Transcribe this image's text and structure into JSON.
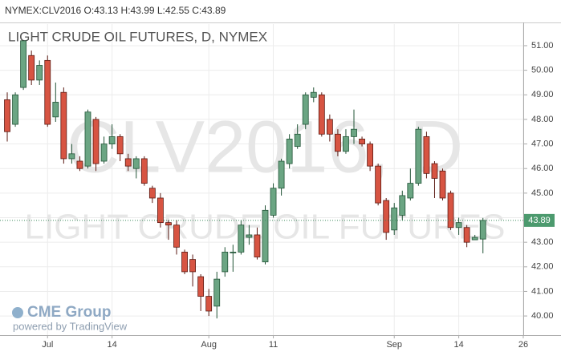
{
  "chart_data": {
    "type": "candlestick",
    "header": "NYMEX:CLV2016 O:43.13 H:43.99 L:42.55 C:43.89",
    "title": "LIGHT CRUDE OIL FUTURES, D, NYMEX",
    "watermark_symbol": "CLV2016, D",
    "watermark_name": "LIGHT CRUDE OIL FUTURES",
    "logo": "CME Group",
    "credit": "powered by TradingView",
    "categories": [
      null,
      null,
      null,
      null,
      null,
      "Jul",
      null,
      null,
      null,
      null,
      null,
      null,
      null,
      "14",
      null,
      null,
      null,
      null,
      null,
      null,
      null,
      null,
      null,
      null,
      null,
      "Aug",
      null,
      null,
      null,
      null,
      null,
      null,
      null,
      "11",
      null,
      null,
      null,
      null,
      null,
      null,
      null,
      null,
      null,
      null,
      null,
      null,
      null,
      null,
      "Sep",
      null,
      null,
      null,
      null,
      null,
      null,
      null,
      "14",
      null,
      null,
      null,
      null,
      null,
      null,
      null,
      "26"
    ],
    "series": {
      "up_color": "#6ba583",
      "down_color": "#d75442",
      "open": [
        48.8,
        47.8,
        49.3,
        50.6,
        49.6,
        50.4,
        48.1,
        49.1,
        46.4,
        46.3,
        46.1,
        48.0,
        46.3,
        47.0,
        47.3,
        46.4,
        46.0,
        46.4,
        45.2,
        44.8,
        43.8,
        43.7,
        42.6,
        42.3,
        41.6,
        40.8,
        40.4,
        41.8,
        42.6,
        42.6,
        43.2,
        43.3,
        42.2,
        44.1,
        45.2,
        46.2,
        46.9,
        47.8,
        48.9,
        49.0,
        48.0,
        47.4,
        46.7,
        47.3,
        47.2,
        47.0,
        46.1,
        44.7,
        43.5,
        44.1,
        44.8,
        45.4,
        47.3,
        46.2,
        45.9,
        45.0,
        43.6,
        43.6,
        43.1,
        43.13,
        null,
        null,
        null,
        null,
        null
      ],
      "high": [
        49.1,
        49.1,
        51.2,
        50.8,
        50.4,
        50.6,
        49.5,
        49.3,
        47.0,
        46.5,
        48.4,
        48.1,
        47.3,
        47.8,
        47.4,
        46.6,
        46.5,
        46.5,
        45.3,
        45.0,
        43.9,
        43.9,
        42.7,
        42.5,
        41.7,
        41.1,
        41.8,
        42.8,
        42.9,
        43.9,
        43.7,
        43.6,
        44.5,
        45.4,
        46.4,
        47.4,
        47.8,
        49.1,
        49.3,
        49.1,
        48.2,
        47.6,
        47.6,
        48.4,
        47.3,
        47.1,
        46.2,
        44.8,
        44.6,
        45.1,
        46.0,
        47.7,
        47.5,
        46.3,
        46.0,
        45.1,
        44.0,
        43.7,
        43.3,
        43.99,
        null,
        null,
        null,
        null,
        null
      ],
      "low": [
        47.1,
        47.7,
        49.2,
        49.4,
        49.4,
        47.7,
        47.9,
        46.2,
        46.2,
        45.9,
        46.0,
        45.9,
        46.2,
        46.8,
        46.3,
        45.9,
        45.6,
        45.3,
        44.6,
        43.6,
        43.1,
        42.5,
        41.7,
        41.2,
        40.2,
        40.0,
        39.9,
        41.6,
        41.8,
        42.5,
        42.9,
        42.3,
        42.1,
        44.0,
        44.9,
        46.0,
        46.8,
        47.6,
        48.7,
        47.3,
        47.1,
        46.5,
        46.6,
        47.0,
        46.9,
        45.9,
        44.5,
        43.1,
        43.3,
        43.9,
        44.7,
        45.3,
        45.6,
        44.8,
        44.7,
        43.5,
        43.3,
        42.8,
        43.1,
        42.55,
        null,
        null,
        null,
        null,
        null
      ],
      "close": [
        47.5,
        49.0,
        51.2,
        49.6,
        50.2,
        47.8,
        48.7,
        46.4,
        46.6,
        46.0,
        48.3,
        46.2,
        47.0,
        47.3,
        46.6,
        46.1,
        46.4,
        45.4,
        44.8,
        43.8,
        43.7,
        42.8,
        41.8,
        41.8,
        40.8,
        40.2,
        41.5,
        42.6,
        42.6,
        43.7,
        43.3,
        42.4,
        44.3,
        45.2,
        46.3,
        47.2,
        47.4,
        49.0,
        49.1,
        47.4,
        47.4,
        46.7,
        47.3,
        47.6,
        47.0,
        46.1,
        44.6,
        43.4,
        44.4,
        44.9,
        45.4,
        47.6,
        45.8,
        45.6,
        44.8,
        43.6,
        43.8,
        43.0,
        43.2,
        43.89,
        null,
        null,
        null,
        null,
        null
      ]
    },
    "ylim": [
      39.22,
      51.88
    ],
    "yticks": [
      {
        "value": 40,
        "label": "40.00"
      },
      {
        "value": 41,
        "label": "41.00"
      },
      {
        "value": 42,
        "label": "42.00"
      },
      {
        "value": 43,
        "label": "43.00"
      },
      {
        "value": 44,
        "label": "44.00"
      },
      {
        "value": 45,
        "label": "45.00"
      },
      {
        "value": 46,
        "label": "46.00"
      },
      {
        "value": 47,
        "label": "47.00"
      },
      {
        "value": 48,
        "label": "48.00"
      },
      {
        "value": 49,
        "label": "49.00"
      },
      {
        "value": 50,
        "label": "50.00"
      },
      {
        "value": 51,
        "label": "51.00"
      }
    ],
    "grid": true
  }
}
